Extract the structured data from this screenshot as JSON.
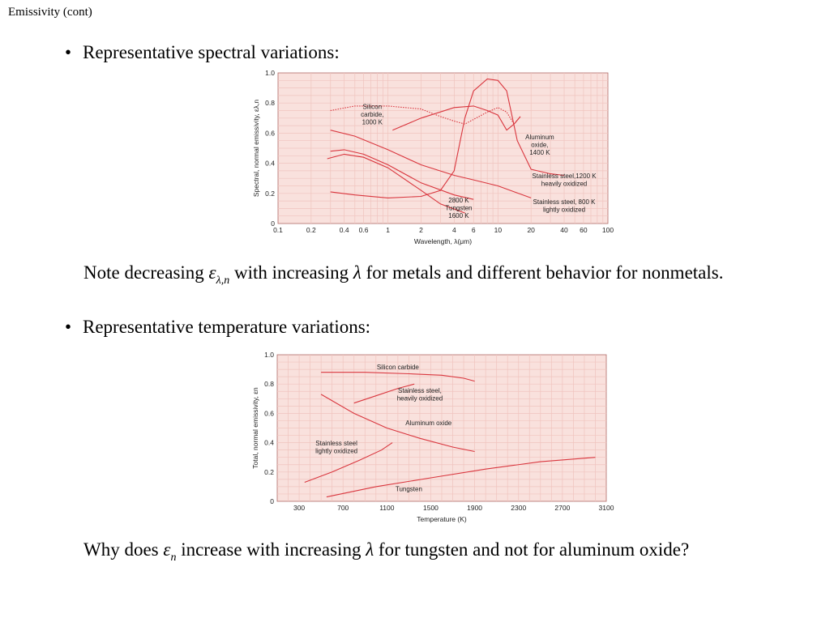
{
  "slide": {
    "title": "Emissivity (cont)",
    "bullet1": "Representative spectral variations:",
    "note1": {
      "pre": "Note decreasing",
      "symbol": "ε",
      "subscript": "λ,n",
      "mid": "with increasing",
      "symbol2": "λ",
      "post": "for metals and different behavior for nonmetals."
    },
    "bullet2": "Representative temperature variations:",
    "note2": {
      "pre": "Why does",
      "symbol": "ε",
      "subscript": "n",
      "mid": "increase with increasing",
      "symbol2": "λ",
      "post": "for tungsten and not for aluminum oxide?"
    }
  },
  "colors": {
    "plot_bg": "#f9e1dd",
    "grid": "#f0c4be",
    "curve": "#d9363e"
  },
  "chart_data": [
    {
      "type": "line",
      "xscale": "log",
      "xlim": [
        0.1,
        100
      ],
      "ylim": [
        0,
        1.0
      ],
      "xlabel": "Wavelength, λ(μm)",
      "ylabel": "Spectral, normal emissivity, ελ,n",
      "xticks": [
        0.1,
        0.2,
        0.4,
        0.6,
        1,
        2,
        4,
        6,
        10,
        20,
        40,
        60,
        100
      ],
      "xticklabels": [
        "0.1",
        "0.2",
        "0.4",
        "0.6",
        "1",
        "2",
        "4",
        "6",
        "10",
        "20",
        "40",
        "60",
        "100"
      ],
      "yticks": [
        0,
        0.2,
        0.4,
        0.6,
        0.8,
        1.0
      ],
      "yticklabels": [
        "0",
        "0.2",
        "0.4",
        "0.6",
        "0.8",
        "1.0"
      ],
      "series": [
        {
          "name": "Silicon carbide, 1000 K",
          "dashed": true,
          "x": [
            0.3,
            0.5,
            1,
            2,
            3,
            4,
            5,
            8,
            10,
            12,
            14,
            16
          ],
          "y": [
            0.75,
            0.78,
            0.78,
            0.76,
            0.71,
            0.68,
            0.66,
            0.74,
            0.77,
            0.74,
            0.66,
            0.71
          ]
        },
        {
          "name": "Aluminum oxide, 1400 K",
          "dashed": false,
          "x": [
            0.3,
            0.5,
            1,
            2,
            3,
            4,
            5,
            6,
            8,
            10,
            12,
            15,
            20,
            30,
            40
          ],
          "y": [
            0.21,
            0.19,
            0.17,
            0.18,
            0.22,
            0.35,
            0.7,
            0.88,
            0.96,
            0.95,
            0.88,
            0.55,
            0.36,
            0.33,
            0.32
          ]
        },
        {
          "name": "Stainless steel, 1200 K heavily oxidized",
          "dashed": false,
          "x": [
            1.1,
            2,
            4,
            6,
            8,
            10,
            12,
            14,
            16
          ],
          "y": [
            0.62,
            0.7,
            0.77,
            0.78,
            0.75,
            0.72,
            0.62,
            0.66,
            0.71
          ]
        },
        {
          "name": "Stainless steel, 800 K lightly oxidized",
          "dashed": false,
          "x": [
            0.3,
            0.5,
            1,
            2,
            4,
            6,
            10,
            20
          ],
          "y": [
            0.62,
            0.58,
            0.49,
            0.39,
            0.32,
            0.29,
            0.25,
            0.17
          ]
        },
        {
          "name": "Tungsten 2800 K",
          "dashed": false,
          "x": [
            0.3,
            0.4,
            0.6,
            1,
            2,
            4,
            6
          ],
          "y": [
            0.48,
            0.49,
            0.46,
            0.39,
            0.27,
            0.19,
            0.16
          ]
        },
        {
          "name": "Tungsten 1600 K",
          "dashed": false,
          "x": [
            0.28,
            0.4,
            0.6,
            1,
            2,
            3,
            5
          ],
          "y": [
            0.43,
            0.46,
            0.44,
            0.37,
            0.22,
            0.13,
            0.07
          ]
        }
      ],
      "annotations": [
        {
          "lines": [
            "Silicon",
            "carbide,",
            "1000 K"
          ],
          "x": 0.72,
          "y": 0.76
        },
        {
          "lines": [
            "Aluminum",
            "oxide,",
            "1400 K"
          ],
          "x": 24,
          "y": 0.56
        },
        {
          "lines": [
            "Stainless steel,1200 K",
            "heavily oxidized"
          ],
          "x": 40,
          "y": 0.3
        },
        {
          "lines": [
            "Stainless steel, 800 K",
            "lightly oxidized"
          ],
          "x": 40,
          "y": 0.13
        },
        {
          "lines": [
            "2800 K",
            "Tungsten",
            "1600 K"
          ],
          "x": 4.4,
          "y": 0.14
        }
      ]
    },
    {
      "type": "line",
      "xlim": [
        100,
        3100
      ],
      "ylim": [
        0,
        1.0
      ],
      "xlabel": "Temperature (K)",
      "ylabel": "Total, normal emissivity, εn",
      "xticks": [
        300,
        700,
        1100,
        1500,
        1900,
        2300,
        2700,
        3100
      ],
      "xticklabels": [
        "300",
        "700",
        "1100",
        "1500",
        "1900",
        "2300",
        "2700",
        "3100"
      ],
      "yticks": [
        0,
        0.2,
        0.4,
        0.6,
        0.8,
        1.0
      ],
      "yticklabels": [
        "0",
        "0.2",
        "0.4",
        "0.6",
        "0.8",
        "1.0"
      ],
      "series": [
        {
          "name": "Silicon carbide",
          "dashed": false,
          "x": [
            500,
            900,
            1300,
            1600,
            1800,
            1900
          ],
          "y": [
            0.88,
            0.88,
            0.87,
            0.86,
            0.84,
            0.82
          ]
        },
        {
          "name": "Stainless steel, heavily oxidized",
          "dashed": false,
          "x": [
            800,
            1000,
            1200,
            1350
          ],
          "y": [
            0.67,
            0.72,
            0.77,
            0.8
          ]
        },
        {
          "name": "Aluminum oxide",
          "dashed": false,
          "x": [
            500,
            800,
            1100,
            1400,
            1700,
            1900
          ],
          "y": [
            0.73,
            0.6,
            0.5,
            0.43,
            0.37,
            0.34
          ]
        },
        {
          "name": "Stainless steel lightly oxidized",
          "dashed": false,
          "x": [
            350,
            600,
            850,
            1050,
            1150
          ],
          "y": [
            0.13,
            0.2,
            0.28,
            0.35,
            0.4
          ]
        },
        {
          "name": "Tungsten",
          "dashed": false,
          "x": [
            550,
            1000,
            1500,
            2000,
            2500,
            3000
          ],
          "y": [
            0.03,
            0.1,
            0.16,
            0.22,
            0.27,
            0.3
          ]
        }
      ],
      "annotations": [
        {
          "lines": [
            "Silicon carbide"
          ],
          "x": 1200,
          "y": 0.9
        },
        {
          "lines": [
            "Stainless steel,",
            "heavily oxidized"
          ],
          "x": 1400,
          "y": 0.74
        },
        {
          "lines": [
            "Aluminum oxide"
          ],
          "x": 1480,
          "y": 0.52
        },
        {
          "lines": [
            "Stainless steel",
            "lightly oxidized"
          ],
          "x": 640,
          "y": 0.38
        },
        {
          "lines": [
            "Tungsten"
          ],
          "x": 1300,
          "y": 0.07
        }
      ]
    }
  ]
}
